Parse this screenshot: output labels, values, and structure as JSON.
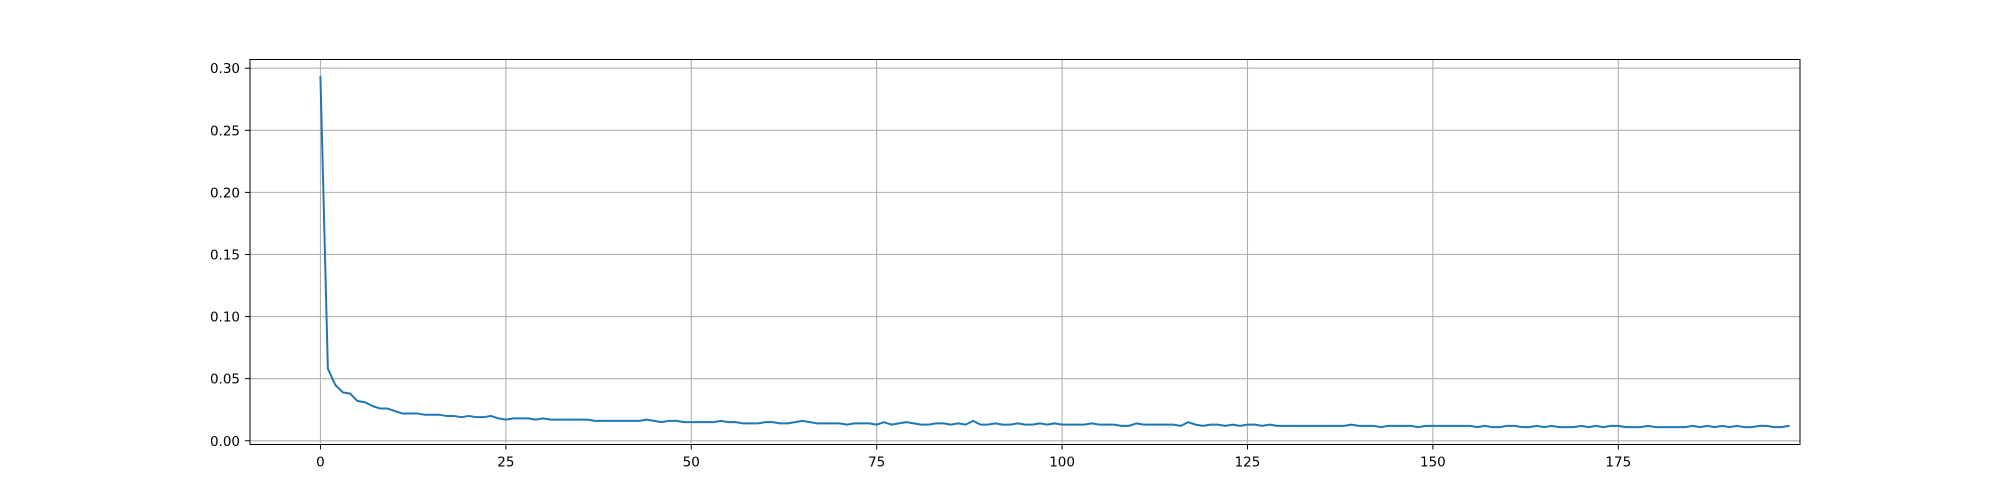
{
  "chart_data": {
    "type": "line",
    "title": "",
    "xlabel": "",
    "ylabel": "",
    "xlim": [
      -9.5,
      199.5
    ],
    "ylim": [
      -0.003,
      0.307
    ],
    "grid": true,
    "colors": {
      "line": "#1f77b4",
      "grid": "#b0b0b0",
      "background": "#ffffff"
    },
    "xticks": [
      0,
      25,
      50,
      75,
      100,
      125,
      150,
      175
    ],
    "xtick_labels": [
      "0",
      "25",
      "50",
      "75",
      "100",
      "125",
      "150",
      "175"
    ],
    "yticks": [
      0.0,
      0.05,
      0.1,
      0.15,
      0.2,
      0.25,
      0.3
    ],
    "ytick_labels": [
      "0.00",
      "0.05",
      "0.10",
      "0.15",
      "0.20",
      "0.25",
      "0.30"
    ],
    "series": [
      {
        "x_start": 0,
        "x_step": 1,
        "values": [
          0.293,
          0.058,
          0.045,
          0.039,
          0.038,
          0.032,
          0.031,
          0.028,
          0.026,
          0.026,
          0.024,
          0.022,
          0.022,
          0.022,
          0.021,
          0.021,
          0.021,
          0.02,
          0.02,
          0.019,
          0.02,
          0.019,
          0.019,
          0.02,
          0.018,
          0.017,
          0.018,
          0.018,
          0.018,
          0.017,
          0.018,
          0.017,
          0.017,
          0.017,
          0.017,
          0.017,
          0.017,
          0.016,
          0.016,
          0.016,
          0.016,
          0.016,
          0.016,
          0.016,
          0.017,
          0.016,
          0.015,
          0.016,
          0.016,
          0.015,
          0.015,
          0.015,
          0.015,
          0.015,
          0.016,
          0.015,
          0.015,
          0.014,
          0.014,
          0.014,
          0.015,
          0.015,
          0.014,
          0.014,
          0.015,
          0.016,
          0.015,
          0.014,
          0.014,
          0.014,
          0.014,
          0.013,
          0.014,
          0.014,
          0.014,
          0.013,
          0.015,
          0.013,
          0.014,
          0.015,
          0.014,
          0.013,
          0.013,
          0.014,
          0.014,
          0.013,
          0.014,
          0.013,
          0.016,
          0.013,
          0.013,
          0.014,
          0.013,
          0.013,
          0.014,
          0.013,
          0.013,
          0.014,
          0.013,
          0.014,
          0.013,
          0.013,
          0.013,
          0.013,
          0.014,
          0.013,
          0.013,
          0.013,
          0.012,
          0.012,
          0.014,
          0.013,
          0.013,
          0.013,
          0.013,
          0.013,
          0.012,
          0.015,
          0.013,
          0.012,
          0.013,
          0.013,
          0.012,
          0.013,
          0.012,
          0.013,
          0.013,
          0.012,
          0.013,
          0.012,
          0.012,
          0.012,
          0.012,
          0.012,
          0.012,
          0.012,
          0.012,
          0.012,
          0.012,
          0.013,
          0.012,
          0.012,
          0.012,
          0.011,
          0.012,
          0.012,
          0.012,
          0.012,
          0.011,
          0.012,
          0.012,
          0.012,
          0.012,
          0.012,
          0.012,
          0.012,
          0.011,
          0.012,
          0.011,
          0.011,
          0.012,
          0.012,
          0.011,
          0.011,
          0.012,
          0.011,
          0.012,
          0.011,
          0.011,
          0.011,
          0.012,
          0.011,
          0.012,
          0.011,
          0.012,
          0.012,
          0.011,
          0.011,
          0.011,
          0.012,
          0.011,
          0.011,
          0.011,
          0.011,
          0.011,
          0.012,
          0.011,
          0.012,
          0.011,
          0.012,
          0.011,
          0.012,
          0.011,
          0.011,
          0.012,
          0.012,
          0.011,
          0.011,
          0.012
        ]
      }
    ]
  }
}
